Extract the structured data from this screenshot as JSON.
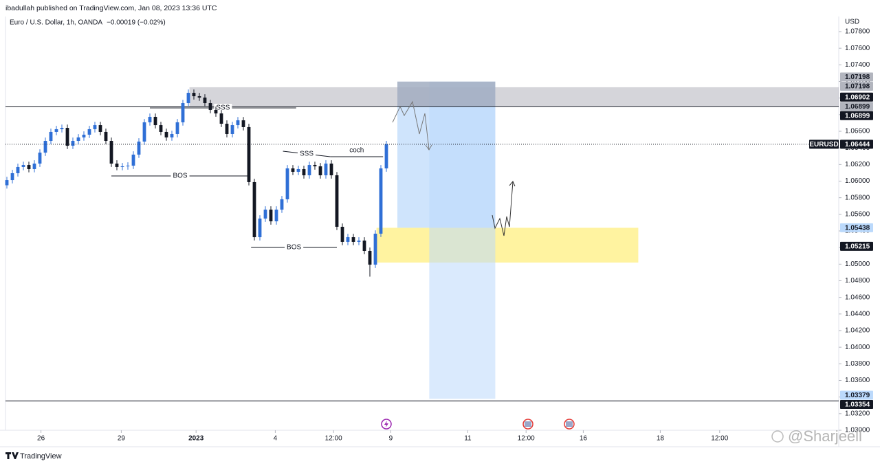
{
  "header": {
    "publisher": "ibadullah published on TradingView.com, Jan 08, 2023 13:36 UTC"
  },
  "chart_data": {
    "type": "candlestick",
    "title": "Euro / U.S. Dollar, 1h, OANDA",
    "change": "−0.00019 (−0.02%)",
    "y_axis_label": "USD",
    "up_color": "#2f6fd6",
    "down_color": "#131722",
    "x": [
      0,
      5,
      10,
      15,
      20,
      25,
      30,
      35,
      40,
      45,
      50,
      55,
      60,
      65,
      70,
      75,
      80,
      85,
      90,
      95,
      100,
      105,
      110,
      115,
      120,
      125,
      130,
      135,
      140,
      145,
      150,
      155,
      160,
      165,
      170,
      175,
      180,
      185,
      190,
      195,
      200,
      205,
      210,
      215,
      220,
      225,
      230,
      235,
      240,
      245,
      250,
      255,
      260,
      265,
      270,
      275,
      280,
      285,
      290,
      295,
      300,
      305,
      310,
      315,
      320,
      325,
      330,
      335,
      340,
      345
    ],
    "open": [
      1.0595,
      1.06012,
      1.06095,
      1.0617,
      1.06194,
      1.06145,
      1.06211,
      1.06343,
      1.06484,
      1.06592,
      1.06625,
      1.06641,
      1.06426,
      1.06484,
      1.06526,
      1.06559,
      1.06625,
      1.06674,
      1.06592,
      1.06484,
      1.06211,
      1.0617,
      1.06178,
      1.06186,
      1.06319,
      1.06476,
      1.06708,
      1.06774,
      1.06674,
      1.06592,
      1.06526,
      1.06567,
      1.06708,
      1.06939,
      1.07063,
      1.07022,
      1.07006,
      1.06939,
      1.06857,
      1.06815,
      1.06691,
      1.06567,
      1.06674,
      1.06732,
      1.0665,
      1.05988,
      1.05325,
      1.05549,
      1.05657,
      1.05516,
      1.05657,
      1.05781,
      1.06153,
      1.06112,
      1.06145,
      1.0607,
      1.06194,
      1.06178,
      1.0607,
      1.06211,
      1.0607,
      1.0545,
      1.05268,
      1.05325,
      1.05268,
      1.05284,
      1.0516,
      1.04994,
      1.05367,
      1.06153
    ],
    "high": [
      1.06052,
      1.06135,
      1.0621,
      1.06234,
      1.06234,
      1.06251,
      1.06383,
      1.06524,
      1.06632,
      1.06665,
      1.06681,
      1.06681,
      1.06524,
      1.06566,
      1.06599,
      1.06665,
      1.06714,
      1.06714,
      1.06632,
      1.06524,
      1.06251,
      1.06218,
      1.06226,
      1.06359,
      1.06516,
      1.06748,
      1.06814,
      1.06814,
      1.06714,
      1.06632,
      1.06607,
      1.06748,
      1.06979,
      1.07103,
      1.07103,
      1.07062,
      1.07046,
      1.06979,
      1.06897,
      1.06855,
      1.06731,
      1.06714,
      1.06772,
      1.06772,
      1.0669,
      1.06028,
      1.05589,
      1.05697,
      1.05697,
      1.05697,
      1.05821,
      1.06193,
      1.06193,
      1.06185,
      1.06185,
      1.06234,
      1.06234,
      1.06218,
      1.06251,
      1.06251,
      1.0611,
      1.0549,
      1.05365,
      1.05365,
      1.05324,
      1.05324,
      1.052,
      1.05407,
      1.06193,
      1.06484
    ],
    "low": [
      1.0591,
      1.05972,
      1.06055,
      1.0613,
      1.06105,
      1.06105,
      1.06171,
      1.06303,
      1.06444,
      1.06552,
      1.06585,
      1.06386,
      1.06386,
      1.06444,
      1.06486,
      1.06519,
      1.06585,
      1.06552,
      1.06444,
      1.06171,
      1.0613,
      1.0613,
      1.06138,
      1.06146,
      1.06279,
      1.06436,
      1.06668,
      1.06634,
      1.06552,
      1.06486,
      1.06486,
      1.06527,
      1.06668,
      1.06899,
      1.06982,
      1.06966,
      1.06899,
      1.06817,
      1.06775,
      1.06651,
      1.06527,
      1.06527,
      1.06634,
      1.0661,
      1.05948,
      1.05285,
      1.05285,
      1.05509,
      1.05476,
      1.05476,
      1.05617,
      1.05741,
      1.06072,
      1.06072,
      1.0603,
      1.0603,
      1.06138,
      1.0603,
      1.0603,
      1.0603,
      1.0541,
      1.05228,
      1.05228,
      1.05228,
      1.05228,
      1.0512,
      1.0485,
      1.04954,
      1.05327,
      1.06113
    ],
    "close": [
      1.06012,
      1.06095,
      1.0617,
      1.06194,
      1.06145,
      1.06211,
      1.06343,
      1.06484,
      1.06592,
      1.06625,
      1.06641,
      1.06426,
      1.06484,
      1.06526,
      1.06559,
      1.06625,
      1.06674,
      1.06592,
      1.06484,
      1.06211,
      1.0617,
      1.06178,
      1.06186,
      1.06319,
      1.06476,
      1.06708,
      1.06774,
      1.06674,
      1.06592,
      1.06526,
      1.06567,
      1.06708,
      1.06939,
      1.07063,
      1.07022,
      1.07006,
      1.06939,
      1.06857,
      1.06815,
      1.06691,
      1.06567,
      1.06674,
      1.06732,
      1.0665,
      1.05988,
      1.05325,
      1.05549,
      1.05657,
      1.05516,
      1.05657,
      1.05781,
      1.06153,
      1.06112,
      1.06145,
      1.0607,
      1.06194,
      1.06178,
      1.0607,
      1.06211,
      1.0607,
      1.0545,
      1.05268,
      1.05325,
      1.05268,
      1.05284,
      1.0516,
      1.04994,
      1.05367,
      1.06153,
      1.06444
    ],
    "xlim": [
      -1.25,
      756.25
    ],
    "xticks": [
      {
        "value": 31,
        "label": "26"
      },
      {
        "value": 104,
        "label": "29"
      },
      {
        "value": 172,
        "label": "2023"
      },
      {
        "value": 244,
        "label": "4"
      },
      {
        "value": 297,
        "label": "12:00"
      },
      {
        "value": 349,
        "label": "9"
      },
      {
        "value": 419,
        "label": "11"
      },
      {
        "value": 472,
        "label": "12:00"
      },
      {
        "value": 524,
        "label": "16"
      },
      {
        "value": 594,
        "label": "18"
      },
      {
        "value": 648,
        "label": "12:00"
      }
    ],
    "ylim": [
      1.07982,
      1.03
    ],
    "yticks": [
      {
        "value": 1.078,
        "label": "1.07800"
      },
      {
        "value": 1.076,
        "label": "1.07600"
      },
      {
        "value": 1.074,
        "label": "1.07400"
      },
      {
        "value": 1.072,
        "label": "1.07200"
      },
      {
        "value": 1.07,
        "label": "1.07000"
      },
      {
        "value": 1.068,
        "label": "1.06800"
      },
      {
        "value": 1.066,
        "label": "1.06600"
      },
      {
        "value": 1.064,
        "label": "1.06400"
      },
      {
        "value": 1.062,
        "label": "1.06200"
      },
      {
        "value": 1.06,
        "label": "1.06000"
      },
      {
        "value": 1.058,
        "label": "1.05800"
      },
      {
        "value": 1.056,
        "label": "1.05600"
      },
      {
        "value": 1.054,
        "label": "1.05400"
      },
      {
        "value": 1.052,
        "label": "1.05200"
      },
      {
        "value": 1.05,
        "label": "1.05000"
      },
      {
        "value": 1.048,
        "label": "1.04800"
      },
      {
        "value": 1.046,
        "label": "1.04600"
      },
      {
        "value": 1.044,
        "label": "1.04400"
      },
      {
        "value": 1.042,
        "label": "1.04200"
      },
      {
        "value": 1.04,
        "label": "1.04000"
      },
      {
        "value": 1.038,
        "label": "1.03800"
      },
      {
        "value": 1.036,
        "label": "1.03600"
      },
      {
        "value": 1.034,
        "label": "1.03400"
      },
      {
        "value": 1.032,
        "label": "1.03200"
      },
      {
        "value": 1.03,
        "label": "1.03000"
      }
    ],
    "zones": [
      {
        "from": 166,
        "to": 756.25,
        "top": 1.0713,
        "bottom": 1.06899,
        "color": "rgba(178,178,188,0.55)"
      },
      {
        "from": 336,
        "to": 574,
        "top": 1.05438,
        "bottom": 1.05019,
        "color": "#fff3a0"
      },
      {
        "from": 355,
        "to": 444,
        "top": 1.07198,
        "bottom": 1.05438,
        "color": "rgba(187,217,251,0.7)"
      },
      {
        "from": 384,
        "to": 444,
        "top": 1.07198,
        "bottom": 1.03379,
        "color": "rgba(187,217,251,0.55)"
      },
      {
        "from": 355,
        "to": 444,
        "top": 1.07198,
        "bottom": 1.06899,
        "color": "rgba(150,150,160,0.55)"
      }
    ],
    "levels": [
      1.06899,
      1.03354
    ],
    "lines": [
      {
        "x": [
          95,
          220
        ],
        "y": [
          1.06062,
          1.06062
        ],
        "label": "BOS"
      },
      {
        "x": [
          222,
          300
        ],
        "y": [
          1.05201,
          1.05201
        ],
        "label": "BOS"
      },
      {
        "x": [
          130,
          263
        ],
        "y": [
          1.06881,
          1.06881
        ],
        "label": "SSS"
      },
      {
        "x": [
          251,
          294
        ],
        "y": [
          1.0636,
          1.06294
        ],
        "label": "SSS"
      },
      {
        "x": [
          294,
          342
        ],
        "y": [
          1.06294,
          1.06294
        ],
        "label": "coch"
      }
    ],
    "price_badges": [
      {
        "value": 1.07198,
        "color": "#b2b5be",
        "text_color": "#131722"
      },
      {
        "value": 1.07198,
        "color": "#b2b5be",
        "text_color": "#131722"
      },
      {
        "value": 1.06902,
        "color": "#131722",
        "text_color": "#ffffff"
      },
      {
        "value": 1.06899,
        "color": "#b2b5be",
        "text_color": "#131722"
      },
      {
        "value": 1.06899,
        "color": "#131722",
        "text_color": "#ffffff"
      },
      {
        "value": 1.06444,
        "name": "EURUSD",
        "color": "#131722",
        "text_color": "#ffffff"
      },
      {
        "value": 1.05438,
        "color": "#bbd9fb",
        "text_color": "#131722"
      },
      {
        "value": 1.05215,
        "color": "#131722",
        "text_color": "#ffffff"
      },
      {
        "value": 1.03379,
        "color": "#bbd9fb",
        "text_color": "#131722"
      },
      {
        "value": 1.03354,
        "color": "#131722",
        "text_color": "#ffffff"
      }
    ]
  },
  "watermark": "@Sharjeell",
  "footer": "TradingView"
}
